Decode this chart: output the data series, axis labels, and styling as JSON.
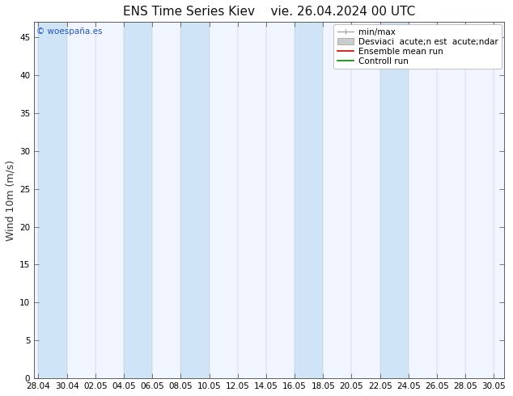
{
  "title": "ENS Time Series Kiev",
  "subtitle": "vie. 26.04.2024 00 UTC",
  "ylabel": "Wind 10m (m/s)",
  "watermark": "© woespaña.es",
  "yticks": [
    0,
    5,
    10,
    15,
    20,
    25,
    30,
    35,
    40,
    45
  ],
  "ymax": 47,
  "ymin": 0,
  "xtick_labels": [
    "28.04",
    "30.04",
    "02.05",
    "04.05",
    "06.05",
    "08.05",
    "10.05",
    "12.05",
    "14.05",
    "16.05",
    "18.05",
    "20.05",
    "22.05",
    "24.05",
    "26.05",
    "28.05",
    "30.05"
  ],
  "bg_color": "#ffffff",
  "plot_bg_color": "#f0f5ff",
  "shade_color": "#d0e4f7",
  "legend_line1": "min/max",
  "legend_line2": "Desviaci  acute;n est  acute;ndar",
  "legend_line3": "Ensemble mean run",
  "legend_line4": "Controll run",
  "legend_color1": "#aaaaaa",
  "legend_color2": "#cccccc",
  "legend_color3": "#cc0000",
  "legend_color4": "#008800",
  "tick_label_fontsize": 7.5,
  "title_fontsize": 11,
  "ylabel_fontsize": 9,
  "legend_fontsize": 7.5,
  "watermark_color": "#2255bb",
  "title_color": "#111111",
  "shaded_bands": [
    [
      0,
      2
    ],
    [
      6,
      8
    ],
    [
      10,
      12
    ],
    [
      18,
      20
    ],
    [
      24,
      26
    ]
  ],
  "xlim_left": -0.3,
  "xlim_right": 32.7
}
